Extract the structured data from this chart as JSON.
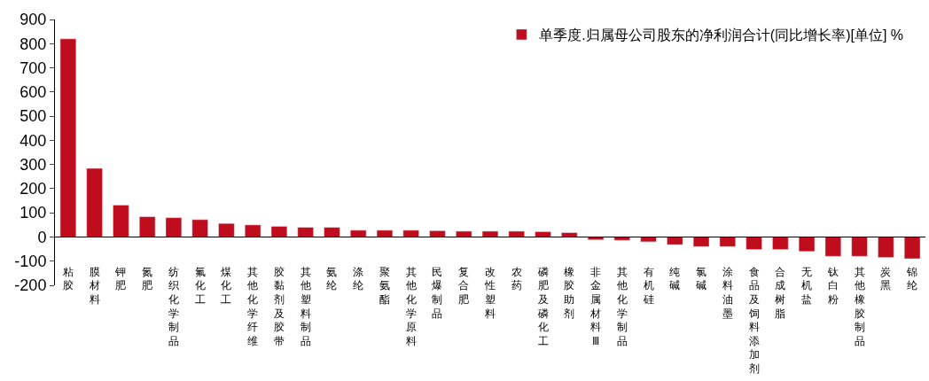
{
  "chart_data": {
    "type": "bar",
    "categories": [
      "粘胶",
      "膜材料",
      "钾肥",
      "氮肥",
      "纺织化学制品",
      "氟化工",
      "煤化工",
      "其他化学纤维",
      "胶黏剂及胶带",
      "其他塑料制品",
      "氨纶",
      "涤纶",
      "聚氨酯",
      "其他化学原料",
      "民爆制品",
      "复合肥",
      "改性塑料",
      "农药",
      "磷肥及磷化工",
      "橡胶助剂",
      "非金属材料Ⅲ",
      "其他化学制品",
      "有机硅",
      "纯碱",
      "氯碱",
      "涂料油墨",
      "食品及饲料添加剂",
      "合成树脂",
      "无机盐",
      "钛白粉",
      "其他橡胶制品",
      "炭黑",
      "锦纶"
    ],
    "series": [
      {
        "name": "单季度.归属母公司股东的净利润合计(同比增长率)[单位] %",
        "color": "#c00d1e",
        "values": [
          820,
          284,
          132,
          84,
          80,
          72,
          56,
          50,
          44,
          40,
          40,
          28,
          28,
          28,
          26,
          24,
          24,
          24,
          22,
          18,
          -12,
          -14,
          -20,
          -32,
          -40,
          -40,
          -52,
          -52,
          -60,
          -80,
          -80,
          -85,
          -90
        ]
      }
    ],
    "ylim": [
      -200,
      900
    ],
    "yticks": [
      -200,
      -100,
      0,
      100,
      200,
      300,
      400,
      500,
      600,
      700,
      800,
      900
    ],
    "legend": "top right"
  }
}
